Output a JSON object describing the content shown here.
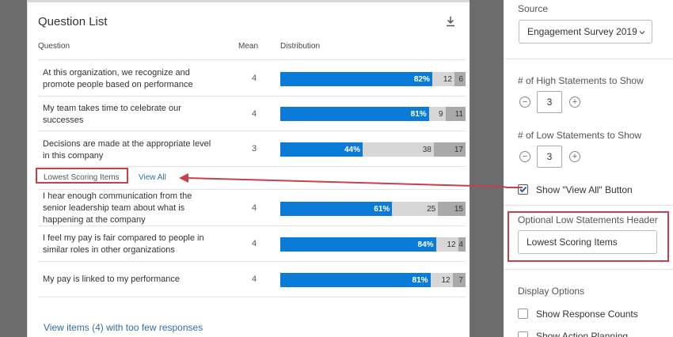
{
  "question_list": {
    "title": "Question List",
    "columns": {
      "question": "Question",
      "mean": "Mean",
      "distribution": "Distribution"
    },
    "high_items": [
      {
        "lines": [
          "At this organization, we recognize and",
          "promote people based on performance"
        ],
        "mean": "4",
        "pos": 82,
        "pos_label": "82%",
        "neu": 12,
        "neu_label": "12",
        "neg": 6,
        "neg_label": "6"
      },
      {
        "lines": [
          "My team takes time to celebrate our",
          "successes"
        ],
        "mean": "4",
        "pos": 81,
        "pos_label": "81%",
        "neu": 9,
        "neu_label": "9",
        "neg": 11,
        "neg_label": "11"
      },
      {
        "lines": [
          "Decisions are made at the appropriate level",
          "in this company"
        ],
        "mean": "3",
        "pos": 44,
        "pos_label": "44%",
        "neu": 38,
        "neu_label": "38",
        "neg": 17,
        "neg_label": "17"
      }
    ],
    "low_header": "Lowest Scoring Items",
    "view_all": "View All",
    "low_items": [
      {
        "lines": [
          "I hear enough communication from the",
          "senior leadership team about what is",
          "happening at the company"
        ],
        "mean": "4",
        "pos": 61,
        "pos_label": "61%",
        "neu": 25,
        "neu_label": "25",
        "neg": 15,
        "neg_label": "15"
      },
      {
        "lines": [
          "I feel my pay is fair compared to people in",
          "similar roles in other organizations"
        ],
        "mean": "4",
        "pos": 84,
        "pos_label": "84%",
        "neu": 12,
        "neu_label": "12",
        "neg": 4,
        "neg_label": "4"
      },
      {
        "lines": [
          "My pay is linked to my performance"
        ],
        "mean": "4",
        "pos": 81,
        "pos_label": "81%",
        "neu": 12,
        "neu_label": "12",
        "neg": 7,
        "neg_label": "7"
      }
    ],
    "few_responses_link": "View items (4) with too few responses"
  },
  "panel": {
    "source_label": "Source",
    "source_value": "Engagement Survey 2019",
    "high_label": "# of High Statements to Show",
    "high_value": "3",
    "low_label": "# of Low Statements to Show",
    "low_value": "3",
    "minus": "−",
    "plus": "+",
    "view_all_checkbox_label": "Show \"View All\" Button",
    "optional_header_label": "Optional Low Statements Header",
    "optional_header_value": "Lowest Scoring Items",
    "display_options_label": "Display Options",
    "show_response_counts": "Show Response Counts",
    "show_action_planning": "Show Action Planning"
  },
  "colors": {
    "positive": "#0a7bd6",
    "neutral": "#d7d7d7",
    "negative": "#a9a9a9",
    "highlight": "#c9404a",
    "link": "#2d6fa8"
  }
}
